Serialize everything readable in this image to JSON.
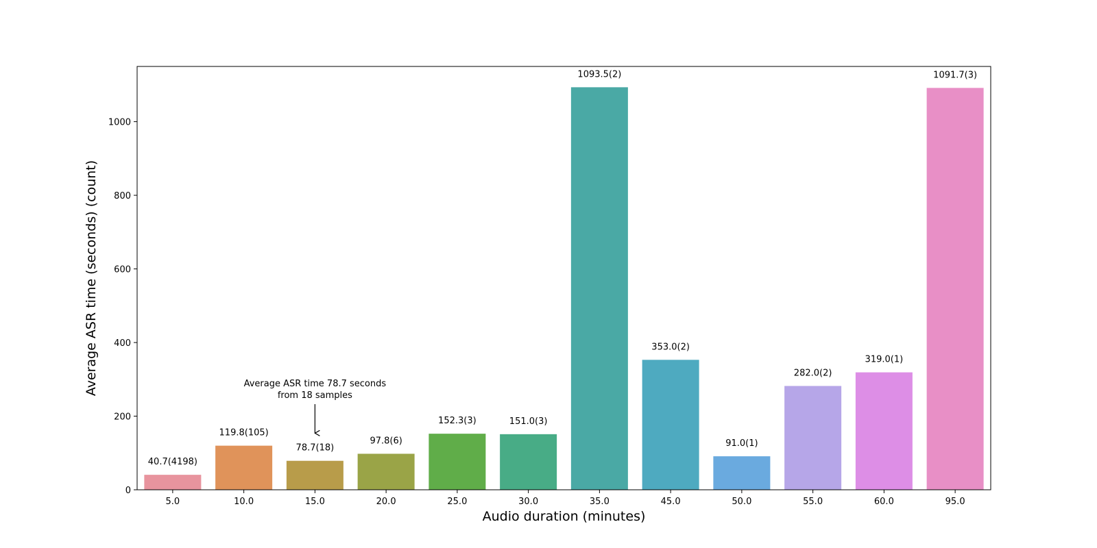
{
  "chart_data": {
    "type": "bar",
    "title": "",
    "xlabel": "Audio duration (minutes)",
    "ylabel": "Average ASR time (seconds) (count)",
    "categories": [
      "5.0",
      "10.0",
      "15.0",
      "20.0",
      "25.0",
      "30.0",
      "35.0",
      "45.0",
      "50.0",
      "55.0",
      "60.0",
      "95.0"
    ],
    "values": [
      40.7,
      119.8,
      78.7,
      97.8,
      152.3,
      151.0,
      1093.5,
      353.0,
      91.0,
      282.0,
      319.0,
      1091.7
    ],
    "data_labels": [
      "40.7(4198)",
      "119.8(105)",
      "78.7(18)",
      "97.8(6)",
      "152.3(3)",
      "151.0(3)",
      "1093.5(2)",
      "353.0(2)",
      "91.0(1)",
      "282.0(2)",
      "319.0(1)",
      "1091.7(3)"
    ],
    "colors": [
      "#e8949e",
      "#e0935a",
      "#b89c4a",
      "#9aa447",
      "#60ad49",
      "#48ac86",
      "#4aa9a5",
      "#4eaac0",
      "#6aaadf",
      "#b6a6e8",
      "#dd8ee6",
      "#e88fc6"
    ],
    "ylim": [
      0,
      1150
    ],
    "yticks": [
      0,
      200,
      400,
      600,
      800,
      1000
    ],
    "grid": false,
    "annotation": {
      "lines": [
        "Average ASR time 78.7 seconds",
        "from 18 samples"
      ],
      "category": "15.0",
      "y": 152
    }
  }
}
